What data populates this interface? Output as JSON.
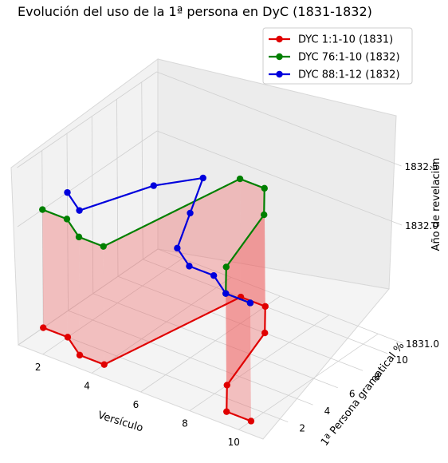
{
  "chart_data": {
    "type": "line",
    "title": "Evolución del uso de la 1ª persona en DyC (1831-1832)",
    "xlabel": "Versículo",
    "ylabel": "1ª Persona gramatical %",
    "zlabel": "Año de revelación",
    "x_ticks": [
      "2",
      "4",
      "6",
      "8",
      "10"
    ],
    "y_ticks": [
      "2",
      "4",
      "6",
      "8",
      "10"
    ],
    "z_ticks": [
      "1831.0",
      "1832.0",
      "1832.5"
    ],
    "legend_position": "top-right",
    "series": [
      {
        "name": "DYC 1:1-10 (1831)",
        "color": "#e00000",
        "points": [
          {
            "x": 1,
            "y": 2,
            "z": 1831.0
          },
          {
            "x": 2,
            "y": 2,
            "z": 1831.0
          },
          {
            "x": 3,
            "y": 1,
            "z": 1831.0
          },
          {
            "x": 4,
            "y": 1,
            "z": 1831.0
          },
          {
            "x": 5,
            "y": 10,
            "z": 1831.0
          },
          {
            "x": 6,
            "y": 10,
            "z": 1831.0
          },
          {
            "x": 7,
            "y": 8,
            "z": 1831.0
          },
          {
            "x": 8,
            "y": 3,
            "z": 1831.0
          },
          {
            "x": 9,
            "y": 1,
            "z": 1831.0
          },
          {
            "x": 10,
            "y": 1,
            "z": 1831.0
          }
        ]
      },
      {
        "name": "DYC 76:1-10 (1832)",
        "color": "#008000",
        "points": [
          {
            "x": 1,
            "y": 2,
            "z": 1832.0
          },
          {
            "x": 2,
            "y": 2,
            "z": 1832.0
          },
          {
            "x": 3,
            "y": 1,
            "z": 1832.0
          },
          {
            "x": 4,
            "y": 1,
            "z": 1832.0
          },
          {
            "x": 5,
            "y": 10,
            "z": 1832.0
          },
          {
            "x": 6,
            "y": 10,
            "z": 1832.0
          },
          {
            "x": 7,
            "y": 8,
            "z": 1832.0
          },
          {
            "x": 8,
            "y": 3,
            "z": 1832.0
          },
          {
            "x": 9,
            "y": 1,
            "z": 1832.0
          },
          {
            "x": 10,
            "y": 1,
            "z": 1832.0
          }
        ]
      },
      {
        "name": "DYC 88:1-12 (1832)",
        "color": "#0000dd",
        "points": [
          {
            "x": 1,
            "y": 4,
            "z": 1832.0
          },
          {
            "x": 2,
            "y": 3,
            "z": 1832.0
          },
          {
            "x": 3,
            "y": 7,
            "z": 1832.0
          },
          {
            "x": 4,
            "y": 9,
            "z": 1832.0
          },
          {
            "x": 5,
            "y": 6,
            "z": 1832.0
          },
          {
            "x": 6,
            "y": 3,
            "z": 1832.0
          },
          {
            "x": 7,
            "y": 2,
            "z": 1832.0
          },
          {
            "x": 8,
            "y": 2,
            "z": 1832.0
          },
          {
            "x": 9,
            "y": 1,
            "z": 1832.0
          },
          {
            "x": 10,
            "y": 1,
            "z": 1832.0
          }
        ]
      }
    ]
  }
}
